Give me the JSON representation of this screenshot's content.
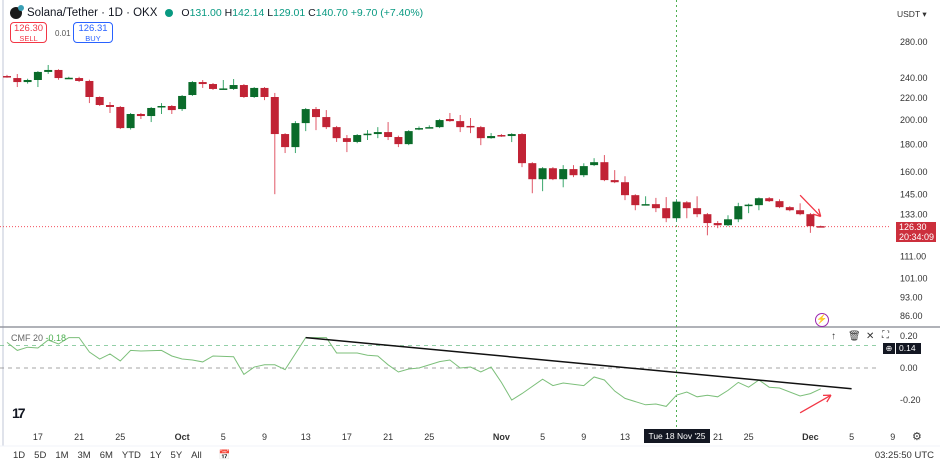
{
  "header": {
    "symbol": "Solana/Tether · 1D · OKX",
    "open_label": "O",
    "open": "131.00",
    "high_label": "H",
    "high": "142.14",
    "low_label": "L",
    "low": "129.01",
    "close_label": "C",
    "close": "140.70",
    "change": "+9.70 (+7.40%)"
  },
  "trade": {
    "sell_price": "126.30",
    "sell_label": "SELL",
    "spread": "0.01",
    "buy_price": "126.31",
    "buy_label": "BUY"
  },
  "currency": "USDT ▾",
  "last_price": {
    "value": "126.30",
    "countdown": "20:34:09"
  },
  "colors": {
    "up": "#0a6b2a",
    "down": "#c12335",
    "cmf": "#7cbf7a",
    "crosshair": "#4caf50",
    "trendline": "#111111",
    "arrow": "#f23645"
  },
  "price_axis": {
    "scale": "log",
    "ticks": [
      "280.00",
      "240.00",
      "220.00",
      "200.00",
      "180.00",
      "160.00",
      "145.00",
      "133.00",
      "111.00",
      "101.00",
      "93.00",
      "86.00"
    ]
  },
  "cmf": {
    "label": "CMF",
    "period": "20",
    "value": "-0.18",
    "badge": "0.14",
    "ticks": [
      "0.20",
      "0.00",
      "-0.20"
    ],
    "levels": [
      0.14,
      0.0
    ],
    "points": [
      [
        "2025-09-14",
        0.16
      ],
      [
        "2025-09-15",
        0.11
      ],
      [
        "2025-09-16",
        0.13
      ],
      [
        "2025-09-17",
        0.125
      ],
      [
        "2025-09-18",
        0.175
      ],
      [
        "2025-09-19",
        0.15
      ],
      [
        "2025-09-20",
        0.19
      ],
      [
        "2025-09-21",
        0.19
      ],
      [
        "2025-09-22",
        0.1
      ],
      [
        "2025-09-23",
        0.056
      ],
      [
        "2025-09-24",
        0.088
      ],
      [
        "2025-09-25",
        0.044
      ],
      [
        "2025-09-26",
        0.11
      ],
      [
        "2025-09-27",
        0.106
      ],
      [
        "2025-09-29",
        0.11
      ],
      [
        "2025-09-30",
        0.075
      ],
      [
        "2025-10-01",
        0.056
      ],
      [
        "2025-10-02",
        0.05
      ],
      [
        "2025-10-03",
        0.038
      ],
      [
        "2025-10-04",
        0.075
      ],
      [
        "2025-10-06",
        0.07
      ],
      [
        "2025-10-07",
        -0.04
      ],
      [
        "2025-10-08",
        0.006
      ],
      [
        "2025-10-09",
        0.02
      ],
      [
        "2025-10-10",
        0.02
      ],
      [
        "2025-10-11",
        -0.01
      ],
      [
        "2025-10-13",
        0.19
      ],
      [
        "2025-10-15",
        0.19
      ],
      [
        "2025-10-16",
        0.094
      ],
      [
        "2025-10-18",
        0.094
      ],
      [
        "2025-10-19",
        0.08
      ],
      [
        "2025-10-20",
        0.075
      ],
      [
        "2025-10-21",
        0.02
      ],
      [
        "2025-10-22",
        -0.025
      ],
      [
        "2025-10-23",
        -0.006
      ],
      [
        "2025-10-24",
        0.0
      ],
      [
        "2025-10-26",
        0.04
      ],
      [
        "2025-10-27",
        0.05
      ],
      [
        "2025-10-28",
        0.0
      ],
      [
        "2025-10-29",
        0.006
      ],
      [
        "2025-10-30",
        -0.025
      ],
      [
        "2025-10-31",
        0.006
      ],
      [
        "2025-11-01",
        -0.09
      ],
      [
        "2025-11-02",
        -0.2
      ],
      [
        "2025-11-03",
        -0.16
      ],
      [
        "2025-11-05",
        -0.07
      ],
      [
        "2025-11-06",
        -0.11
      ],
      [
        "2025-11-07",
        -0.094
      ],
      [
        "2025-11-09",
        -0.11
      ],
      [
        "2025-11-10",
        -0.056
      ],
      [
        "2025-11-11",
        -0.075
      ],
      [
        "2025-11-12",
        -0.144
      ],
      [
        "2025-11-13",
        -0.19
      ],
      [
        "2025-11-15",
        -0.23
      ],
      [
        "2025-11-16",
        -0.225
      ],
      [
        "2025-11-17",
        -0.24
      ],
      [
        "2025-11-18",
        -0.17
      ],
      [
        "2025-11-19",
        -0.15
      ],
      [
        "2025-11-20",
        -0.18
      ],
      [
        "2025-11-21",
        -0.17
      ],
      [
        "2025-11-22",
        -0.18
      ],
      [
        "2025-11-23",
        -0.14
      ],
      [
        "2025-11-24",
        -0.09
      ],
      [
        "2025-11-25",
        -0.12
      ],
      [
        "2025-11-26",
        -0.075
      ],
      [
        "2025-11-27",
        -0.12
      ],
      [
        "2025-11-28",
        -0.125
      ],
      [
        "2025-11-30",
        -0.175
      ],
      [
        "2025-12-01",
        -0.16
      ],
      [
        "2025-12-02",
        -0.13
      ]
    ],
    "trendline": [
      [
        "2025-10-13",
        0.19
      ],
      [
        "2025-12-05",
        -0.13
      ]
    ],
    "arrow": [
      [
        "2025-11-30",
        -0.28
      ],
      [
        "2025-12-03",
        -0.17
      ]
    ]
  },
  "price_arrow": [
    [
      "2025-11-30",
      144.7
    ],
    [
      "2025-12-02",
      132.0
    ]
  ],
  "crosshair": {
    "date": "2025-11-18",
    "label": "Tue 18 Nov '25"
  },
  "candles": [
    [
      "2025-09-14",
      241.8,
      243,
      240,
      240.8
    ],
    [
      "2025-09-15",
      239.7,
      243.9,
      230.6,
      235.6
    ],
    [
      "2025-09-16",
      235.6,
      239,
      234,
      237.7
    ],
    [
      "2025-09-17",
      237.7,
      247,
      230.6,
      246.1
    ],
    [
      "2025-09-18",
      246.1,
      253.6,
      244,
      248.2
    ],
    [
      "2025-09-19",
      248.2,
      249,
      238,
      239.7
    ],
    [
      "2025-09-20",
      239.7,
      241,
      239,
      240
    ],
    [
      "2025-09-21",
      239.7,
      241,
      235.6,
      236.7
    ],
    [
      "2025-09-22",
      236.7,
      238,
      215.2,
      220.9
    ],
    [
      "2025-09-23",
      220.9,
      221.5,
      212.5,
      213.4
    ],
    [
      "2025-09-24",
      213.4,
      216.2,
      206.2,
      211.6
    ],
    [
      "2025-09-25",
      211.6,
      212.5,
      192.4,
      193.2
    ],
    [
      "2025-09-26",
      193.2,
      206.2,
      192,
      205.3
    ],
    [
      "2025-09-27",
      205.3,
      206.2,
      200.9,
      203.5
    ],
    [
      "2025-09-28",
      203.5,
      211.6,
      198.3,
      210.7
    ],
    [
      "2025-09-29",
      211.6,
      215.2,
      205.3,
      212.5
    ],
    [
      "2025-09-30",
      212.5,
      213.4,
      205.3,
      208.8
    ],
    [
      "2025-10-01",
      209.7,
      222.8,
      208,
      221.9
    ],
    [
      "2025-10-02",
      222.8,
      236.6,
      221.9,
      235.6
    ],
    [
      "2025-10-03",
      235.6,
      237.7,
      229.7,
      233.6
    ],
    [
      "2025-10-04",
      233.6,
      234.6,
      227.7,
      228.7
    ],
    [
      "2025-10-05",
      228.7,
      237.7,
      228,
      229.2
    ],
    [
      "2025-10-06",
      228.7,
      238.7,
      227.7,
      232.6
    ],
    [
      "2025-10-07",
      232.6,
      233.6,
      220,
      220.9
    ],
    [
      "2025-10-08",
      220.9,
      230.6,
      220,
      229.7
    ],
    [
      "2025-10-09",
      229.7,
      230.6,
      218,
      220.9
    ],
    [
      "2025-10-10",
      220.9,
      224.8,
      145.3,
      188.3
    ],
    [
      "2025-10-11",
      188.3,
      189,
      173.5,
      178
    ],
    [
      "2025-10-12",
      178,
      199.1,
      173.5,
      197.4
    ],
    [
      "2025-10-13",
      197.4,
      210.7,
      190.7,
      209.7
    ],
    [
      "2025-10-14",
      209.7,
      211.6,
      191.5,
      202.6
    ],
    [
      "2025-10-15",
      202.6,
      208.8,
      192.4,
      194
    ],
    [
      "2025-10-16",
      194,
      195,
      182,
      185
    ],
    [
      "2025-10-17",
      185,
      187.5,
      174.2,
      182
    ],
    [
      "2025-10-18",
      182,
      188.3,
      181,
      187.5
    ],
    [
      "2025-10-19",
      188.3,
      191.5,
      183.5,
      188.6
    ],
    [
      "2025-10-20",
      188.3,
      194,
      185,
      189.9
    ],
    [
      "2025-10-21",
      189.9,
      198.3,
      183.5,
      185.9
    ],
    [
      "2025-10-22",
      185.9,
      187,
      178,
      180.3
    ],
    [
      "2025-10-23",
      180.3,
      191.5,
      179.5,
      190.7
    ],
    [
      "2025-10-24",
      192.4,
      194.5,
      191.5,
      193.2
    ],
    [
      "2025-10-25",
      193.6,
      195.5,
      193,
      194
    ],
    [
      "2025-10-26",
      194,
      201,
      193.2,
      200
    ],
    [
      "2025-10-27",
      200.9,
      206.2,
      198.5,
      199.1
    ],
    [
      "2025-10-28",
      199.1,
      204.4,
      189.9,
      194
    ],
    [
      "2025-10-29",
      195,
      201.8,
      189,
      194.8
    ],
    [
      "2025-10-30",
      194,
      195,
      179.5,
      185
    ],
    [
      "2025-10-31",
      185,
      189.1,
      184.5,
      186.7
    ],
    [
      "2025-11-01",
      187.5,
      188.3,
      186,
      186.7
    ],
    [
      "2025-11-02",
      186.7,
      189,
      181.9,
      188.3
    ],
    [
      "2025-11-03",
      188.3,
      189,
      163.3,
      166.1
    ],
    [
      "2025-11-04",
      166.1,
      166.8,
      145.9,
      155
    ],
    [
      "2025-11-05",
      155,
      163.3,
      147.2,
      162.5
    ],
    [
      "2025-11-06",
      162.5,
      163.3,
      154.4,
      155
    ],
    [
      "2025-11-07",
      155,
      164.7,
      149.7,
      161.9
    ],
    [
      "2025-11-08",
      161.9,
      164.7,
      156.4,
      157.7
    ],
    [
      "2025-11-09",
      157.7,
      166,
      156.4,
      164
    ],
    [
      "2025-11-10",
      164.7,
      169.7,
      164,
      166.8
    ],
    [
      "2025-11-11",
      166.8,
      172,
      153.7,
      154.4
    ],
    [
      "2025-11-12",
      154.4,
      161.2,
      152.4,
      153
    ],
    [
      "2025-11-13",
      153,
      157,
      141.6,
      144.7
    ],
    [
      "2025-11-14",
      144.7,
      145.3,
      135.6,
      138.6
    ],
    [
      "2025-11-15",
      139,
      144,
      138.6,
      139.2
    ],
    [
      "2025-11-16",
      139.2,
      143,
      134.5,
      136.8
    ],
    [
      "2025-11-17",
      136.8,
      143.5,
      128.8,
      131
    ],
    [
      "2025-11-18",
      131,
      142.14,
      129.01,
      140.7
    ],
    [
      "2025-11-19",
      140.3,
      141,
      131,
      136.8
    ],
    [
      "2025-11-20",
      136.8,
      144,
      131.6,
      133.3
    ],
    [
      "2025-11-21",
      133.3,
      134,
      121.7,
      128.3
    ],
    [
      "2025-11-22",
      128.3,
      129.4,
      125.5,
      127.1
    ],
    [
      "2025-11-23",
      127.1,
      132.7,
      126.6,
      130.4
    ],
    [
      "2025-11-24",
      130.4,
      140,
      128.8,
      138
    ],
    [
      "2025-11-25",
      138.6,
      139.5,
      133.9,
      138.9
    ],
    [
      "2025-11-26",
      138.6,
      143.3,
      135.6,
      142.8
    ],
    [
      "2025-11-27",
      142.8,
      143.5,
      140.5,
      141
    ],
    [
      "2025-11-28",
      141,
      142.2,
      136.8,
      137.4
    ],
    [
      "2025-11-29",
      137.4,
      138,
      135,
      135.6
    ],
    [
      "2025-11-30",
      135.6,
      139.7,
      132.7,
      133.3
    ],
    [
      "2025-12-01",
      133.3,
      134,
      123,
      126.6
    ],
    [
      "2025-12-02",
      126.6,
      126.9,
      126,
      126.3
    ]
  ],
  "time_axis": [
    [
      "2025-09-17",
      "17"
    ],
    [
      "2025-09-21",
      "21"
    ],
    [
      "2025-09-25",
      "25"
    ],
    [
      "2025-10-01",
      "Oct"
    ],
    [
      "2025-10-05",
      "5"
    ],
    [
      "2025-10-09",
      "9"
    ],
    [
      "2025-10-13",
      "13"
    ],
    [
      "2025-10-17",
      "17"
    ],
    [
      "2025-10-21",
      "21"
    ],
    [
      "2025-10-25",
      "25"
    ],
    [
      "2025-11-01",
      "Nov"
    ],
    [
      "2025-11-05",
      "5"
    ],
    [
      "2025-11-09",
      "9"
    ],
    [
      "2025-11-13",
      "13"
    ],
    [
      "2025-11-21",
      "21"
    ],
    [
      "2025-11-25",
      "25"
    ],
    [
      "2025-12-01",
      "Dec"
    ],
    [
      "2025-12-05",
      "5"
    ],
    [
      "2025-12-09",
      "9"
    ]
  ],
  "toolbar": {
    "ranges": [
      "1D",
      "5D",
      "1M",
      "3M",
      "6M",
      "YTD",
      "1Y",
      "5Y",
      "All"
    ]
  },
  "clock": "03:25:50 UTC",
  "logo": "TV"
}
